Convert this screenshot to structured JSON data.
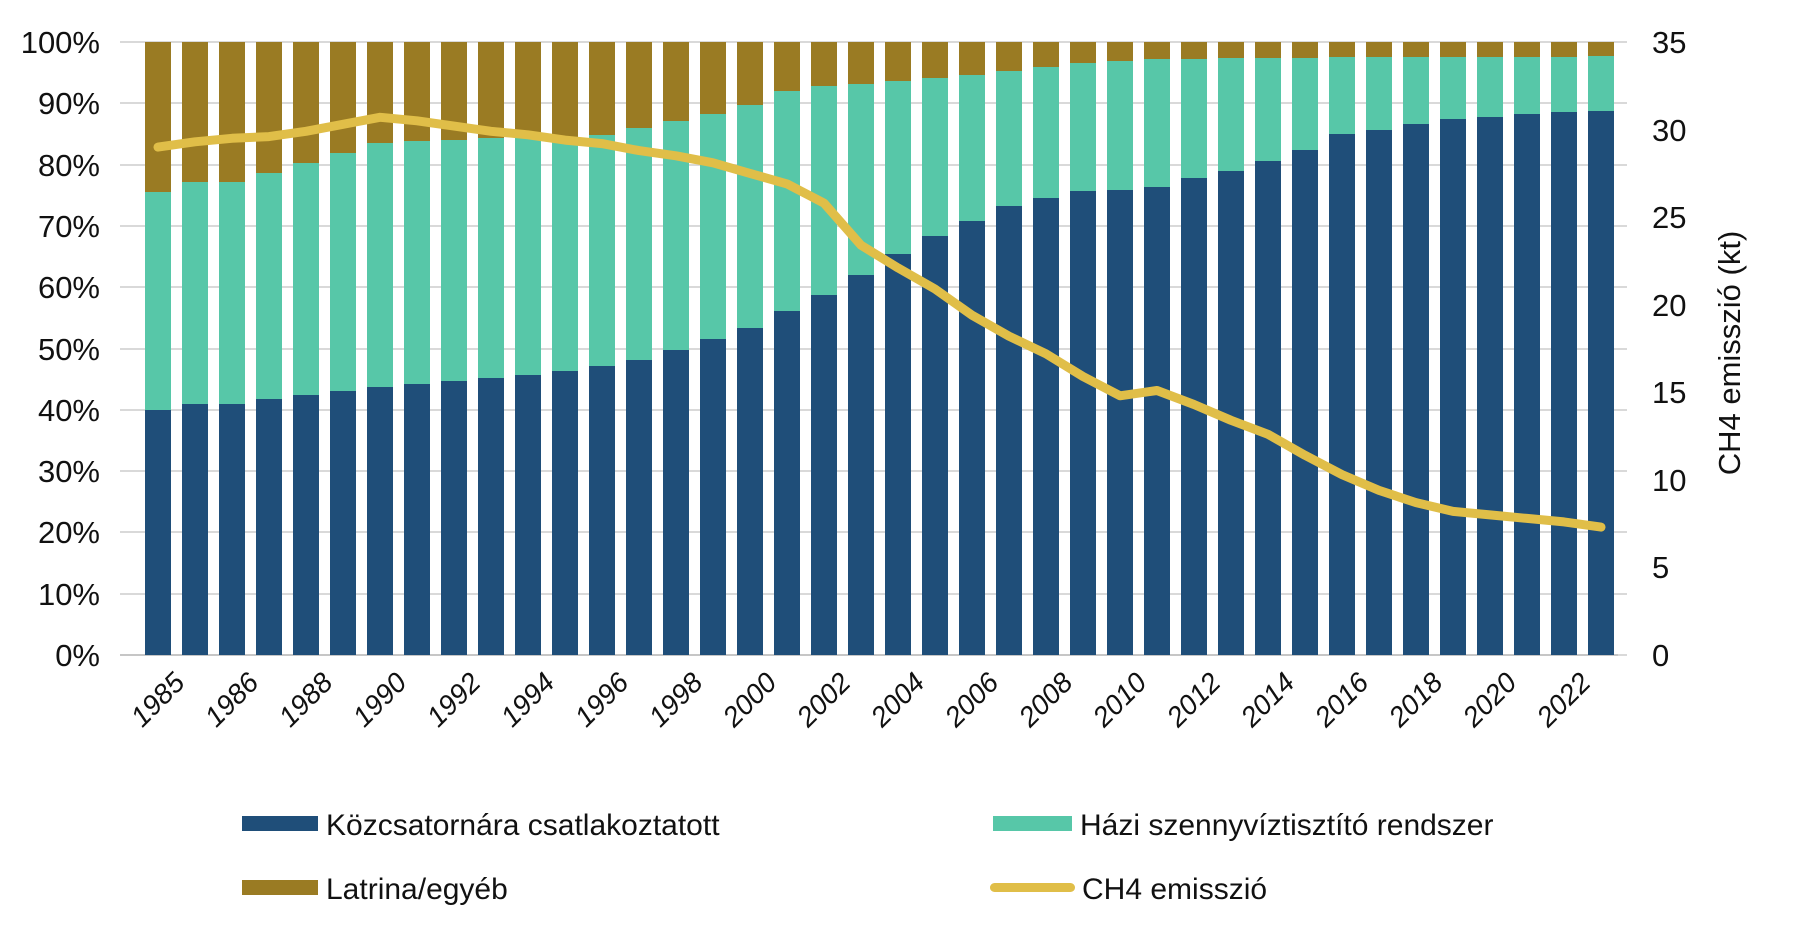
{
  "chart_data": {
    "type": "stacked-bar+line",
    "n_bars": 40,
    "x_tick_labels": [
      "1985",
      "1986",
      "1988",
      "1990",
      "1992",
      "1994",
      "1996",
      "1998",
      "2000",
      "2002",
      "2004",
      "2006",
      "2008",
      "2010",
      "2012",
      "2014",
      "2016",
      "2018",
      "2020",
      "2022"
    ],
    "x_tick_on_every_other_bar": true,
    "left_axis": {
      "min": 0,
      "max": 100,
      "tick_labels": [
        "0%",
        "10%",
        "20%",
        "30%",
        "40%",
        "50%",
        "60%",
        "70%",
        "80%",
        "90%",
        "100%"
      ]
    },
    "right_axis": {
      "min": 0,
      "max": 35,
      "tick_values": [
        0,
        5,
        10,
        15,
        20,
        25,
        30,
        35
      ],
      "title": "CH4 emisszió (kt)"
    },
    "grid": "horizontal, every 10%",
    "legend_position": "bottom, two columns",
    "series": [
      {
        "name": "Közcsatornára csatlakoztatott",
        "type": "bar",
        "color": "#1f4e79",
        "values": [
          40.0,
          41.0,
          41.0,
          41.8,
          42.4,
          43.0,
          43.7,
          44.2,
          44.7,
          45.2,
          45.7,
          46.4,
          47.1,
          48.2,
          49.8,
          51.6,
          53.4,
          56.1,
          58.8,
          62.0,
          65.4,
          68.3,
          70.8,
          73.3,
          74.6,
          75.7,
          75.9,
          76.4,
          77.8,
          78.9,
          80.6,
          82.4,
          85.0,
          85.7,
          86.6,
          87.4,
          87.7,
          88.2,
          88.5,
          88.7
        ]
      },
      {
        "name": "Házi szennyvíztisztító rendszer",
        "type": "bar",
        "color": "#57c7a8",
        "values": [
          35.5,
          36.2,
          36.2,
          36.8,
          37.9,
          38.9,
          39.9,
          39.6,
          39.3,
          39.1,
          38.6,
          38.1,
          37.7,
          37.8,
          37.3,
          36.7,
          36.3,
          35.9,
          34.0,
          31.2,
          28.3,
          25.8,
          23.8,
          22.0,
          21.3,
          20.9,
          21.0,
          20.8,
          19.5,
          18.5,
          16.8,
          15.0,
          12.5,
          11.8,
          10.9,
          10.2,
          9.9,
          9.4,
          9.1,
          9.0
        ]
      },
      {
        "name": "Latrina/egyéb",
        "type": "bar",
        "color": "#9a7b23",
        "values": [
          24.5,
          22.8,
          22.8,
          21.4,
          19.7,
          18.1,
          16.4,
          16.2,
          16.0,
          15.7,
          15.7,
          15.5,
          15.2,
          14.0,
          12.9,
          11.7,
          10.3,
          8.0,
          7.2,
          6.8,
          6.3,
          5.9,
          5.4,
          4.7,
          4.1,
          3.4,
          3.1,
          2.8,
          2.7,
          2.6,
          2.6,
          2.6,
          2.5,
          2.5,
          2.5,
          2.4,
          2.4,
          2.4,
          2.4,
          2.3
        ]
      },
      {
        "name": "CH4 emisszió",
        "type": "line",
        "color": "#e0be48",
        "axis": "right",
        "values": [
          29.0,
          29.3,
          29.5,
          29.6,
          29.9,
          30.3,
          30.7,
          30.5,
          30.2,
          29.9,
          29.7,
          29.4,
          29.2,
          28.8,
          28.5,
          28.1,
          27.5,
          26.9,
          25.8,
          23.4,
          22.1,
          20.9,
          19.4,
          18.2,
          17.2,
          15.9,
          14.8,
          15.1,
          14.3,
          13.4,
          12.6,
          11.4,
          10.3,
          9.4,
          8.7,
          8.2,
          8.0,
          7.8,
          7.6,
          7.3
        ]
      }
    ]
  },
  "legend": {
    "items": [
      {
        "label": "Közcsatornára csatlakoztatott",
        "color": "#1f4e79",
        "swatch": "rect"
      },
      {
        "label": "Házi szennyvíztisztító rendszer",
        "color": "#57c7a8",
        "swatch": "rect"
      },
      {
        "label": "Latrina/egyéb",
        "color": "#9a7b23",
        "swatch": "rect"
      },
      {
        "label": "CH4 emisszió",
        "color": "#e0be48",
        "swatch": "line"
      }
    ]
  },
  "colors": {
    "bar_blue": "#1f4e79",
    "bar_teal": "#57c7a8",
    "bar_gold": "#9a7b23",
    "line_yellow": "#e0be48",
    "gridline": "#d9d9d9",
    "text": "#111111"
  }
}
